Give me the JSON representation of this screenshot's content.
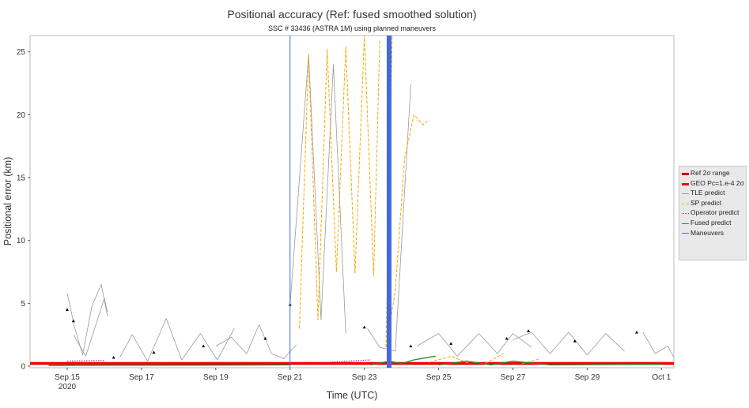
{
  "title": "Positional accuracy (Ref: fused smoothed solution)",
  "subtitle": "SSC # 33436 (ASTRA 1M) using planned maneuvers",
  "chart_data": {
    "type": "line",
    "title": "Positional accuracy (Ref: fused smoothed solution)",
    "subtitle": "SSC # 33436 (ASTRA 1M) using planned maneuvers",
    "xlabel": "Time (UTC)",
    "ylabel": "Positional error (km)",
    "xlim": [
      "2020-09-14 00:00",
      "2020-10-01 08:00"
    ],
    "ylim": [
      0,
      26.3
    ],
    "x_ticks": [
      {
        "date": "2020-09-15",
        "label": "Sep 15",
        "sublabel": "2020"
      },
      {
        "date": "2020-09-17",
        "label": "Sep 17"
      },
      {
        "date": "2020-09-19",
        "label": "Sep 19"
      },
      {
        "date": "2020-09-21",
        "label": "Sep 21"
      },
      {
        "date": "2020-09-23",
        "label": "Sep 23"
      },
      {
        "date": "2020-09-25",
        "label": "Sep 25"
      },
      {
        "date": "2020-09-27",
        "label": "Sep 27"
      },
      {
        "date": "2020-09-29",
        "label": "Sep 29"
      },
      {
        "date": "2020-10-01",
        "label": "Oct 1"
      }
    ],
    "y_ticks": [
      0,
      5,
      10,
      15,
      20,
      25
    ],
    "grid": false,
    "legend_position": "right",
    "series": [
      {
        "name": "Ref 2σ range",
        "color": "#cc0000",
        "style": "thick",
        "points": [
          [
            "2020-09-14 00:00",
            0.18
          ],
          [
            "2020-10-01 08:00",
            0.18
          ]
        ]
      },
      {
        "name": "GEO Pc=1.e-4 2σ",
        "color": "#ff0000",
        "style": "thick",
        "points": [
          [
            "2020-09-14 00:00",
            0.25
          ],
          [
            "2020-10-01 08:00",
            0.25
          ]
        ]
      },
      {
        "name": "TLE predict",
        "color": "#999999",
        "style": "thin",
        "segments": [
          [
            [
              "2020-09-15 00:00",
              5.8
            ],
            [
              "2020-09-15 05:00",
              3.0
            ],
            [
              "2020-09-15 10:00",
              0.9
            ],
            [
              "2020-09-15 16:00",
              4.8
            ],
            [
              "2020-09-15 22:00",
              6.5
            ],
            [
              "2020-09-16 02:00",
              4.0
            ]
          ],
          [
            [
              "2020-09-15 04:00",
              2.5
            ],
            [
              "2020-09-15 12:00",
              0.8
            ],
            [
              "2020-09-16 00:00",
              5.4
            ],
            [
              "2020-09-16 02:00",
              4.3
            ]
          ],
          [
            [
              "2020-09-16 10:00",
              0.7
            ],
            [
              "2020-09-16 18:00",
              2.5
            ],
            [
              "2020-09-17 04:00",
              0.4
            ],
            [
              "2020-09-17 16:00",
              3.8
            ],
            [
              "2020-09-18 02:00",
              0.5
            ],
            [
              "2020-09-18 14:00",
              2.6
            ],
            [
              "2020-09-19 01:00",
              0.5
            ],
            [
              "2020-09-19 12:00",
              3.0
            ]
          ],
          [
            [
              "2020-09-19 00:00",
              1.6
            ],
            [
              "2020-09-19 10:00",
              2.3
            ],
            [
              "2020-09-19 20:00",
              1.0
            ],
            [
              "2020-09-20 04:00",
              3.3
            ],
            [
              "2020-09-20 12:00",
              1.0
            ],
            [
              "2020-09-20 20:00",
              0.6
            ],
            [
              "2020-09-21 04:00",
              1.7
            ]
          ],
          [
            [
              "2020-09-21 00:00",
              4.8
            ],
            [
              "2020-09-21 12:00",
              24.8
            ],
            [
              "2020-09-21 20:00",
              3.7
            ],
            [
              "2020-09-22 04:00",
              24.0
            ],
            [
              "2020-09-22 12:00",
              2.6
            ]
          ],
          [
            [
              "2020-09-23 02:00",
              3.0
            ],
            [
              "2020-09-23 10:00",
              1.5
            ],
            [
              "2020-09-23 20:00",
              1.2
            ],
            [
              "2020-09-24 06:00",
              22.4
            ]
          ],
          [
            [
              "2020-09-24 10:00",
              1.6
            ],
            [
              "2020-09-25 00:00",
              2.6
            ],
            [
              "2020-09-25 12:00",
              0.8
            ],
            [
              "2020-09-26 02:00",
              2.6
            ],
            [
              "2020-09-26 14:00",
              1.0
            ],
            [
              "2020-09-27 00:00",
              2.6
            ],
            [
              "2020-09-27 12:00",
              1.5
            ]
          ],
          [
            [
              "2020-09-27 00:00",
              2.1
            ],
            [
              "2020-09-27 12:00",
              2.7
            ],
            [
              "2020-09-28 00:00",
              1.0
            ],
            [
              "2020-09-28 12:00",
              2.7
            ],
            [
              "2020-09-29 00:00",
              0.9
            ],
            [
              "2020-09-29 12:00",
              2.6
            ],
            [
              "2020-09-30 00:00",
              1.2
            ]
          ],
          [
            [
              "2020-09-30 12:00",
              2.7
            ],
            [
              "2020-09-30 20:00",
              1.0
            ],
            [
              "2020-10-01 04:00",
              1.6
            ],
            [
              "2020-10-01 08:00",
              0.7
            ]
          ]
        ]
      },
      {
        "name": "SP predict",
        "color": "#f5a800",
        "style": "dashed",
        "segments": [
          [
            [
              "2020-09-21 06:00",
              3.0
            ],
            [
              "2020-09-21 12:00",
              24.7
            ],
            [
              "2020-09-21 18:00",
              3.7
            ],
            [
              "2020-09-22 00:00",
              25.2
            ],
            [
              "2020-09-22 06:00",
              7.5
            ],
            [
              "2020-09-22 12:00",
              25.4
            ],
            [
              "2020-09-22 18:00",
              7.4
            ],
            [
              "2020-09-23 00:00",
              26.3
            ],
            [
              "2020-09-23 06:00",
              7.2
            ],
            [
              "2020-09-23 10:00",
              26.0
            ]
          ],
          [
            [
              "2020-09-23 14:00",
              1.5
            ],
            [
              "2020-09-23 18:00",
              26.3
            ]
          ],
          [
            [
              "2020-09-23 14:00",
              1.5
            ],
            [
              "2020-09-23 20:00",
              6.0
            ],
            [
              "2020-09-24 02:00",
              16.5
            ],
            [
              "2020-09-24 08:00",
              20.0
            ],
            [
              "2020-09-24 14:00",
              19.2
            ],
            [
              "2020-09-24 18:00",
              19.6
            ]
          ],
          [
            [
              "2020-09-24 18:00",
              0.3
            ],
            [
              "2020-09-25 08:00",
              0.8
            ],
            [
              "2020-09-25 20:00",
              0.2
            ]
          ],
          [
            [
              "2020-09-26 06:00",
              0.2
            ],
            [
              "2020-09-26 18:00",
              1.0
            ]
          ],
          [
            [
              "2020-09-27 06:00",
              0.2
            ],
            [
              "2020-09-27 18:00",
              0.6
            ]
          ]
        ]
      },
      {
        "name": "Operator predict",
        "color": "#aa2288",
        "style": "dotted",
        "segments": [
          [
            [
              "2020-09-15 00:00",
              0.4
            ],
            [
              "2020-09-16 00:00",
              0.45
            ]
          ],
          [
            [
              "2020-09-22 00:00",
              0.3
            ],
            [
              "2020-09-23 04:00",
              0.5
            ]
          ]
        ]
      },
      {
        "name": "Fused predict",
        "color": "#228b22",
        "style": "solid",
        "segments": [
          [
            [
              "2020-09-14 12:00",
              0.05
            ],
            [
              "2020-09-21 00:00",
              0.1
            ]
          ],
          [
            [
              "2020-09-23 04:00",
              0.1
            ],
            [
              "2020-09-23 16:00",
              0.4
            ],
            [
              "2020-09-24 00:00",
              0.2
            ],
            [
              "2020-09-24 08:00",
              0.5
            ],
            [
              "2020-09-24 22:00",
              0.8
            ]
          ],
          [
            [
              "2020-09-25 00:00",
              0.1
            ],
            [
              "2020-09-25 18:00",
              0.4
            ],
            [
              "2020-09-26 10:00",
              0.1
            ],
            [
              "2020-09-27 00:00",
              0.4
            ],
            [
              "2020-09-28 00:00",
              0.1
            ],
            [
              "2020-10-01 00:00",
              0.15
            ]
          ]
        ]
      },
      {
        "name": "Maneuvers",
        "color": "#4169e1",
        "style": "vertical",
        "points": [
          [
            "2020-09-21 00:00",
            26.3
          ],
          [
            "2020-09-23 16:00",
            26.3
          ]
        ]
      }
    ],
    "markers": [
      [
        "2020-09-15 00:00",
        4.5
      ],
      [
        "2020-09-15 04:00",
        3.6
      ],
      [
        "2020-09-16 06:00",
        0.7
      ],
      [
        "2020-09-17 08:00",
        1.1
      ],
      [
        "2020-09-18 16:00",
        1.6
      ],
      [
        "2020-09-20 08:00",
        2.2
      ],
      [
        "2020-09-21 00:00",
        4.9
      ],
      [
        "2020-09-23 00:00",
        3.1
      ],
      [
        "2020-09-24 06:00",
        1.6
      ],
      [
        "2020-09-25 08:00",
        1.8
      ],
      [
        "2020-09-26 20:00",
        2.2
      ],
      [
        "2020-09-27 10:00",
        2.8
      ],
      [
        "2020-09-28 16:00",
        2.0
      ],
      [
        "2020-09-30 08:00",
        2.7
      ]
    ]
  }
}
